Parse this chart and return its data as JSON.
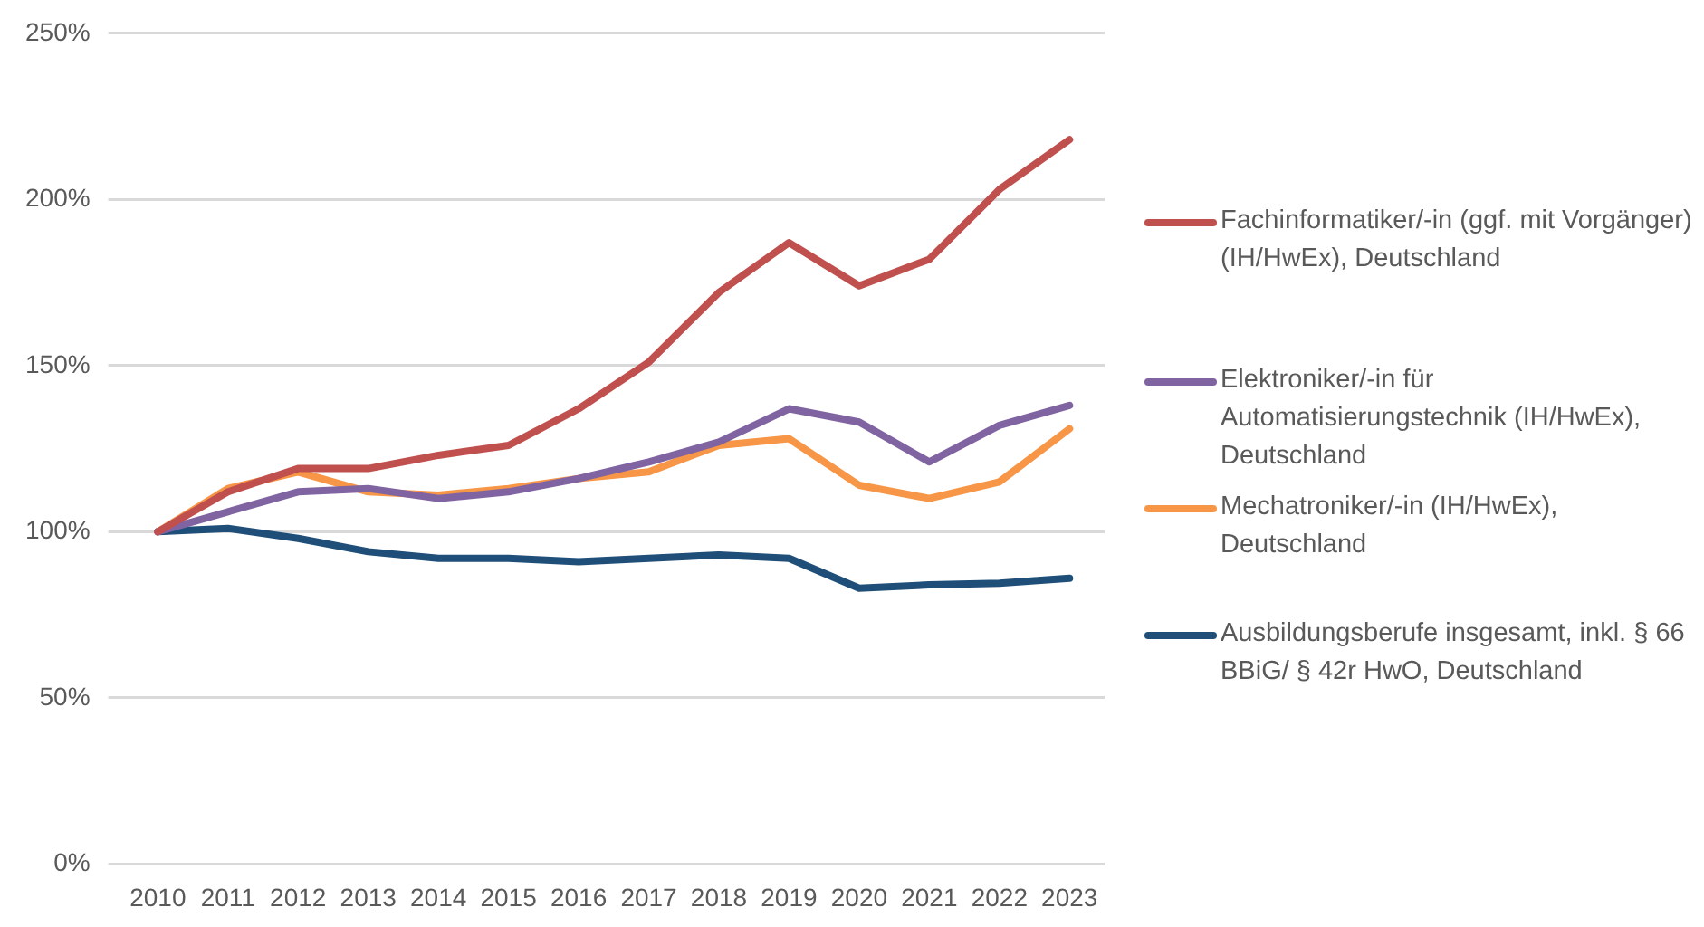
{
  "chart_data": {
    "type": "line",
    "categories": [
      "2010",
      "2011",
      "2012",
      "2013",
      "2014",
      "2015",
      "2016",
      "2017",
      "2018",
      "2019",
      "2020",
      "2021",
      "2022",
      "2023"
    ],
    "series": [
      {
        "name": "Fachinformatiker/-in (ggf. mit Vorgänger) (IH/HwEx), Deutschland",
        "color": "#c0504d",
        "values": [
          100,
          112,
          119,
          119,
          123,
          126,
          137,
          151,
          172,
          187,
          174,
          182,
          203,
          218
        ]
      },
      {
        "name": "Elektroniker/-in für Automatisierungstechnik (IH/HwEx), Deutschland",
        "color": "#8064a2",
        "values": [
          100,
          106,
          112,
          113,
          110,
          112,
          116,
          121,
          127,
          137,
          133,
          121,
          132,
          138
        ]
      },
      {
        "name": "Mechatroniker/-in (IH/HwEx), Deutschland",
        "color": "#f79646",
        "values": [
          100,
          113,
          118,
          112,
          111,
          113,
          116,
          118,
          126,
          128,
          114,
          110,
          115,
          131
        ]
      },
      {
        "name": "Ausbildungsberufe insgesamt, inkl. § 66 BBiG/ § 42r HwO, Deutschland",
        "color": "#1f4e79",
        "values": [
          100,
          101,
          98,
          94,
          92,
          92,
          91,
          92,
          93,
          92,
          83,
          84,
          84.5,
          86
        ]
      }
    ],
    "ylim": [
      0,
      250
    ],
    "yticks": [
      {
        "value": 0,
        "label": "0%"
      },
      {
        "value": 50,
        "label": "50%"
      },
      {
        "value": 100,
        "label": "100%"
      },
      {
        "value": 150,
        "label": "150%"
      },
      {
        "value": 200,
        "label": "200%"
      },
      {
        "value": 250,
        "label": "250%"
      }
    ],
    "grid": "y",
    "legend": "right",
    "marker": "none",
    "line_style": "solid"
  }
}
